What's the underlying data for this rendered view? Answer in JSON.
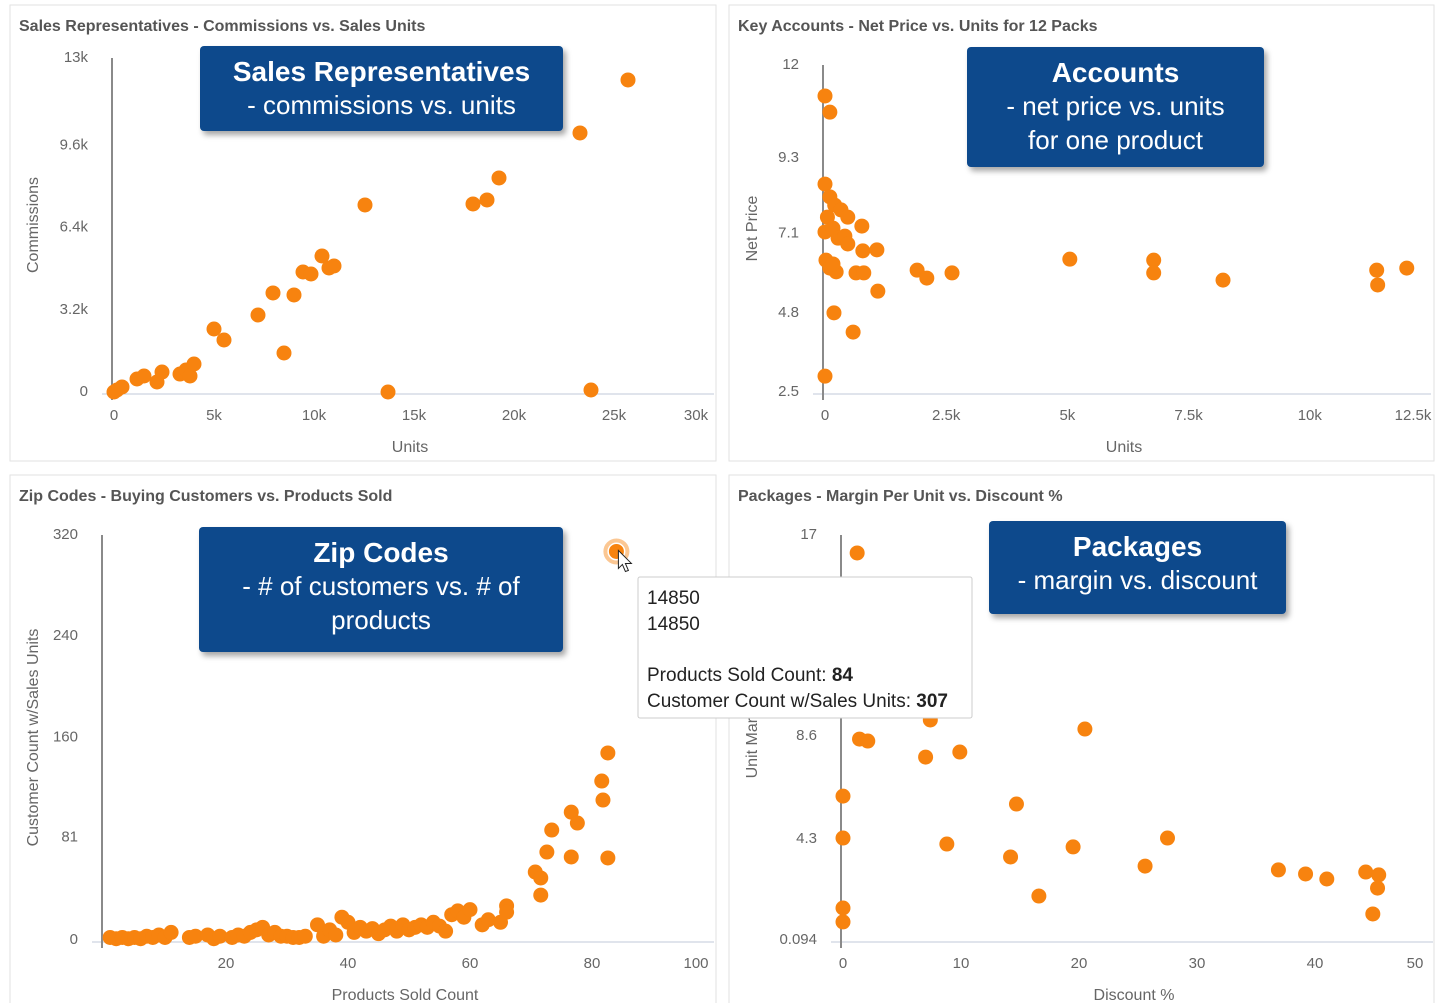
{
  "chart_data": [
    {
      "type": "scatter",
      "title": "Sales Representatives - Commissions vs. Sales Units",
      "annotation": {
        "title": "Sales Representatives",
        "lines": [
          "- commissions vs. units"
        ]
      },
      "x_label": "Units",
      "y_label": "Commissions",
      "color": "#f7830f",
      "grid": false,
      "x": [
        0,
        150,
        400,
        1150,
        1500,
        2150,
        2400,
        3300,
        3600,
        3800,
        4000,
        5000,
        5500,
        7200,
        7950,
        8500,
        9000,
        9450,
        9850,
        10400,
        10750,
        11000,
        12550,
        13700,
        17950,
        18650,
        19250,
        23300,
        23850,
        25700
      ],
      "values": [
        0,
        80,
        195,
        506,
        623,
        389,
        778,
        700,
        856,
        623,
        1090,
        2452,
        2024,
        2997,
        3854,
        1518,
        3776,
        4671,
        4593,
        5294,
        4827,
        4905,
        7279,
        0,
        7318,
        7474,
        8330,
        10082,
        78,
        12145
      ],
      "xlim": [
        0,
        30000
      ],
      "xticks": [
        0,
        {
          "value": 5000,
          "label": "5k"
        },
        {
          "value": 10000,
          "label": "10k"
        },
        {
          "value": 15000,
          "label": "15k"
        },
        {
          "value": 20000,
          "label": "20k"
        },
        {
          "value": 25000,
          "label": "25k"
        },
        {
          "value": 30000,
          "label": "30k"
        }
      ],
      "ylim": [
        0,
        13000
      ],
      "yticks": [
        0,
        {
          "value": 3200,
          "label": "3.2k"
        },
        {
          "value": 6400,
          "label": "6.4k"
        },
        {
          "value": 9600,
          "label": "9.6k"
        },
        {
          "value": 13000,
          "label": "13k"
        }
      ]
    },
    {
      "type": "scatter",
      "title": "Key Accounts - Net Price vs. Units for 12 Packs",
      "annotation": {
        "title": "Accounts",
        "lines": [
          "- net price vs. units",
          "for one product"
        ]
      },
      "x_label": "Units",
      "y_label": "Net Price",
      "color": "#f7830f",
      "grid": false,
      "x": [
        0,
        100,
        0,
        100,
        200,
        50,
        330,
        470,
        0,
        165,
        270,
        410,
        470,
        760,
        20,
        100,
        230,
        165,
        640,
        800,
        780,
        1070,
        1090,
        185,
        580,
        0,
        1900,
        2100,
        2620,
        5050,
        6780,
        6780,
        8210,
        11380,
        11400,
        12000
      ],
      "values": [
        11.1,
        10.63,
        8.54,
        8.17,
        7.93,
        7.58,
        7.79,
        7.58,
        7.15,
        7.26,
        6.97,
        7.03,
        6.8,
        7.32,
        6.33,
        6.1,
        5.99,
        6.22,
        5.96,
        5.96,
        6.6,
        6.63,
        5.43,
        4.8,
        4.24,
        2.96,
        6.04,
        5.81,
        5.96,
        6.36,
        6.33,
        5.96,
        5.75,
        6.04,
        5.61,
        6.1
      ],
      "xlim": [
        0,
        12500
      ],
      "xticks": [
        0,
        {
          "value": 2500,
          "label": "2.5k"
        },
        {
          "value": 5000,
          "label": "5k"
        },
        {
          "value": 7500,
          "label": "7.5k"
        },
        {
          "value": 10000,
          "label": "10k"
        },
        {
          "value": 12500,
          "label": "12.5k"
        }
      ],
      "ylim": [
        2.5,
        12
      ],
      "yticks": [
        2.5,
        4.8,
        7.1,
        9.3,
        12
      ]
    },
    {
      "type": "scatter",
      "title": "Zip Codes - Buying Customers vs. Products Sold",
      "annotation": {
        "title": "Zip Codes",
        "lines": [
          "- # of customers vs. # of",
          "products"
        ]
      },
      "x_label": "Products Sold Count",
      "y_label": "Customer Count w/Sales Units",
      "color": "#f7830f",
      "grid": false,
      "x": [
        1,
        2,
        3,
        4,
        5,
        6,
        7,
        8,
        9,
        10,
        11,
        14,
        15,
        17,
        18,
        19,
        21,
        22,
        23,
        24,
        25,
        26,
        27,
        28,
        29,
        30,
        31,
        32,
        33,
        35,
        36,
        37,
        38,
        39,
        40,
        41,
        42,
        43,
        44,
        45,
        46,
        47,
        48,
        49,
        50,
        51,
        52,
        53,
        54,
        55,
        56,
        57,
        58,
        59,
        60,
        62,
        63,
        65,
        66,
        66,
        70.7,
        71.6,
        71.6,
        72.6,
        73.4,
        76.6,
        76.6,
        77.6,
        81.6,
        81.8,
        82.6,
        82.6,
        84
      ],
      "values": [
        2,
        1,
        2,
        1,
        2,
        1,
        3,
        2,
        4,
        2,
        6,
        2,
        3,
        4,
        1,
        3,
        2,
        4,
        3,
        6,
        8,
        10,
        4,
        6,
        3,
        3,
        2,
        2,
        3,
        12,
        3,
        8,
        4,
        18,
        14,
        6,
        10,
        7,
        9,
        5,
        8,
        11,
        7,
        12,
        8,
        10,
        12,
        10,
        14,
        11,
        7,
        20,
        23,
        18,
        24,
        12,
        16,
        14,
        27,
        22,
        53.7,
        49,
        35.5,
        69.5,
        86.9,
        65.6,
        101,
        92.4,
        125.6,
        110.6,
        147.8,
        64.8,
        307
      ],
      "xlim": [
        0,
        100
      ],
      "xticks": [
        20,
        40,
        60,
        80,
        100
      ],
      "ylim": [
        0,
        320
      ],
      "yticks": [
        0,
        81,
        160,
        240,
        320
      ],
      "tooltip": {
        "lines": [
          "14850",
          "14850"
        ],
        "x_label": "Products Sold Count:",
        "y_label": "Customer Count w/Sales Units:"
      }
    },
    {
      "type": "scatter",
      "title": "Packages - Margin Per Unit vs. Discount %",
      "annotation": {
        "title": "Packages",
        "lines": [
          "- margin vs. discount"
        ]
      },
      "x_label": "Discount %",
      "y_label": "Unit Margin",
      "color": "#f7830f",
      "grid": false,
      "x": [
        1.2,
        0,
        0,
        0,
        0,
        1.4,
        2.1,
        7.4,
        7,
        9.9,
        8.8,
        14.7,
        14.2,
        16.6,
        19.5,
        20.5,
        25.6,
        27.5,
        36.9,
        39.2,
        41,
        44.3,
        45.4,
        45.3,
        44.9
      ],
      "values": [
        16.25,
        6.1,
        4.35,
        1.43,
        0.85,
        8.48,
        8.4,
        9.28,
        7.73,
        7.94,
        4.1,
        5.77,
        3.56,
        1.93,
        3.98,
        8.9,
        3.18,
        4.35,
        3.02,
        2.85,
        2.64,
        2.93,
        2.81,
        2.26,
        1.18
      ],
      "xlim": [
        0,
        50
      ],
      "xticks": [
        0,
        10,
        20,
        30,
        40,
        50
      ],
      "ylim": [
        0.094,
        17
      ],
      "yticks": [
        0.094,
        4.3,
        8.6,
        17
      ]
    }
  ]
}
